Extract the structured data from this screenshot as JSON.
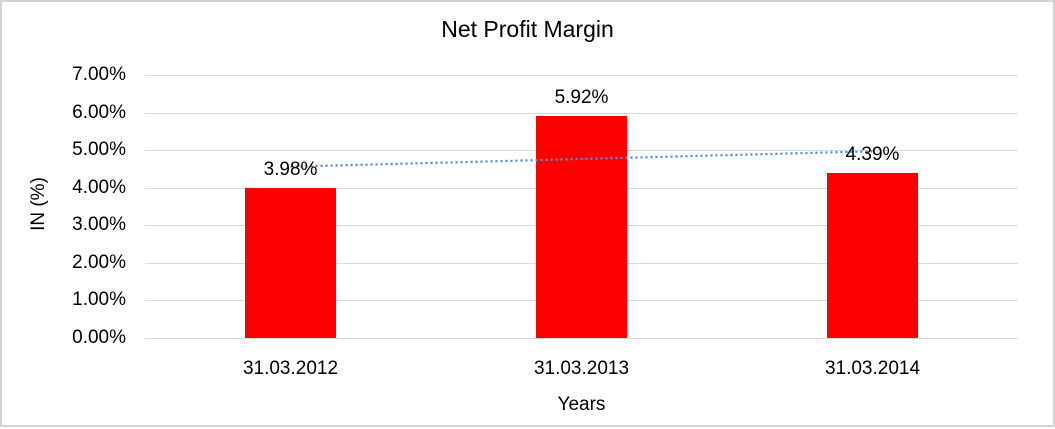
{
  "chart": {
    "title": "Net Profit Margin",
    "y_axis_title": "IN (%)",
    "x_axis_title": "Years"
  },
  "chart_data": {
    "type": "bar",
    "title": "Net Profit Margin",
    "xlabel": "Years",
    "ylabel": "IN (%)",
    "categories": [
      "31.03.2012",
      "31.03.2013",
      "31.03.2014"
    ],
    "values": [
      3.98,
      5.92,
      4.39
    ],
    "data_labels": [
      "3.98%",
      "5.92%",
      "4.39%"
    ],
    "ylim": [
      0,
      7
    ],
    "y_ticks": [
      {
        "value": 0,
        "label": "0.00%"
      },
      {
        "value": 1,
        "label": "1.00%"
      },
      {
        "value": 2,
        "label": "2.00%"
      },
      {
        "value": 3,
        "label": "3.00%"
      },
      {
        "value": 4,
        "label": "4.00%"
      },
      {
        "value": 5,
        "label": "5.00%"
      },
      {
        "value": 6,
        "label": "6.00%"
      },
      {
        "value": 7,
        "label": "7.00%"
      }
    ],
    "grid": true,
    "legend": "none",
    "bar_color": "#FF0000",
    "gridline_color": "#D9D9D9",
    "trendline": {
      "type": "linear",
      "style": "dotted",
      "color": "#5A8FD0",
      "start_value": 4.56,
      "end_value": 4.97
    }
  }
}
